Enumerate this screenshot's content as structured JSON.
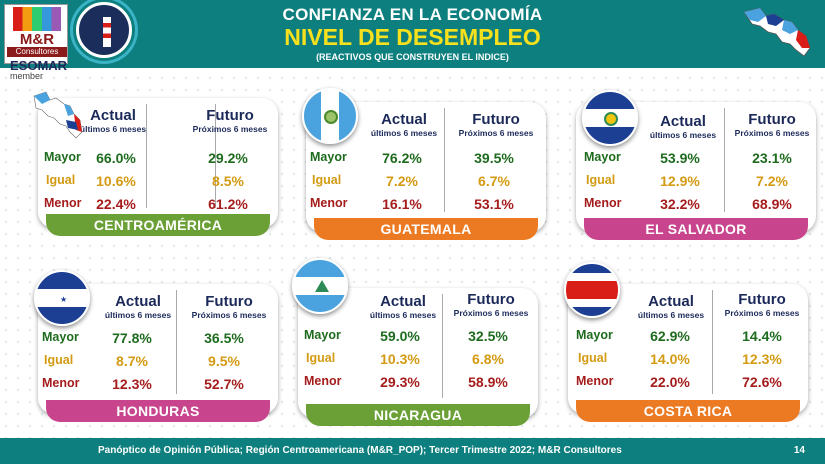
{
  "header": {
    "logo_text": "M&R",
    "logo_sub": "Consultores",
    "esomar": "ESOMAR",
    "esomar_member": "member",
    "title_line1": "CONFIANZA EN LA ECONOMÍA",
    "title_line2": "NIVEL DE DESEMPLEO",
    "title_line3": "(REACTIVOS QUE CONSTRUYEN EL INDICE)"
  },
  "labels": {
    "actual": "Actual",
    "actual_sub": "últimos 6 meses",
    "futuro": "Futuro",
    "futuro_sub": "Próximos 6 meses",
    "mayor": "Mayor",
    "igual": "Igual",
    "menor": "Menor"
  },
  "cards": [
    {
      "name": "CENTROAMÉRICA",
      "color": "#6aa036",
      "actual": [
        "66.0%",
        "10.6%",
        "22.4%"
      ],
      "futuro": [
        "29.2%",
        "8.5%",
        "61.2%"
      ]
    },
    {
      "name": "GUATEMALA",
      "color": "#ec7a22",
      "actual": [
        "76.2%",
        "7.2%",
        "16.1%"
      ],
      "futuro": [
        "39.5%",
        "6.7%",
        "53.1%"
      ]
    },
    {
      "name": "EL SALVADOR",
      "color": "#c8458e",
      "actual": [
        "53.9%",
        "12.9%",
        "32.2%"
      ],
      "futuro": [
        "23.1%",
        "7.2%",
        "68.9%"
      ]
    },
    {
      "name": "HONDURAS",
      "color": "#c8458e",
      "actual": [
        "77.8%",
        "8.7%",
        "12.3%"
      ],
      "futuro": [
        "36.5%",
        "9.5%",
        "52.7%"
      ]
    },
    {
      "name": "NICARAGUA",
      "color": "#6aa036",
      "actual": [
        "59.0%",
        "10.3%",
        "29.3%"
      ],
      "futuro": [
        "32.5%",
        "6.8%",
        "58.9%"
      ]
    },
    {
      "name": "COSTA RICA",
      "color": "#ec7a22",
      "actual": [
        "62.9%",
        "14.0%",
        "22.0%"
      ],
      "futuro": [
        "14.4%",
        "12.3%",
        "72.6%"
      ]
    }
  ],
  "footer": {
    "text": "Panóptico de Opinión Pública; Región Centroamericana (M&R_POP); Tercer Trimestre 2022; M&R Consultores",
    "page": "14"
  }
}
